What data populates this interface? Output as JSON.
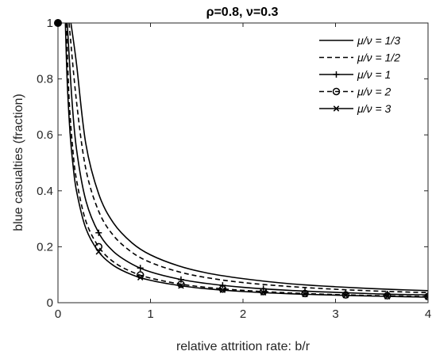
{
  "chart_data": {
    "type": "line",
    "title": "ρ=0.8, ν=0.3",
    "xlabel": "relative attrition rate: b/r",
    "ylabel": "blue casualties (fraction)",
    "xlim": [
      0,
      4
    ],
    "ylim": [
      0,
      1
    ],
    "x_ticks": [
      "0",
      "1",
      "2",
      "3",
      "4"
    ],
    "y_ticks": [
      "0",
      "0.2",
      "0.4",
      "0.6",
      "0.8",
      "1"
    ],
    "grid": false,
    "legend_position": "top-right",
    "start_point": {
      "x": 0,
      "y": 1
    },
    "series": [
      {
        "name": "μ/ν = 1/3",
        "line_style": "solid",
        "marker": "none",
        "x": [
          0.14,
          0.2,
          0.3,
          0.44,
          0.6,
          0.8,
          1.0,
          1.3,
          1.6,
          2.0,
          2.5,
          3.0,
          3.5,
          4.0
        ],
        "y": [
          1.0,
          0.855,
          0.57,
          0.389,
          0.285,
          0.214,
          0.171,
          0.132,
          0.107,
          0.086,
          0.068,
          0.057,
          0.049,
          0.043
        ]
      },
      {
        "name": "μ/ν = 1/2",
        "line_style": "dashed",
        "marker": "none",
        "x": [
          0.12,
          0.2,
          0.3,
          0.44,
          0.6,
          0.8,
          1.0,
          1.3,
          1.6,
          2.0,
          2.5,
          3.0,
          3.5,
          4.0
        ],
        "y": [
          1.0,
          0.72,
          0.48,
          0.327,
          0.24,
          0.18,
          0.144,
          0.111,
          0.09,
          0.072,
          0.058,
          0.048,
          0.041,
          0.036
        ]
      },
      {
        "name": "μ/ν = 1",
        "line_style": "solid",
        "marker": "plus",
        "x": [
          0.1,
          0.15,
          0.2,
          0.3,
          0.44,
          0.6,
          0.8,
          1.0,
          1.3,
          1.6,
          2.0,
          2.5,
          3.0,
          3.5,
          4.0
        ],
        "y": [
          1.0,
          0.73,
          0.55,
          0.367,
          0.25,
          0.183,
          0.138,
          0.11,
          0.085,
          0.069,
          0.055,
          0.044,
          0.037,
          0.031,
          0.028
        ],
        "marker_x": [
          0.44,
          0.89,
          1.33,
          1.78,
          2.22,
          2.67,
          3.11,
          3.56,
          4.0
        ],
        "marker_y": [
          0.25,
          0.124,
          0.083,
          0.062,
          0.05,
          0.041,
          0.035,
          0.031,
          0.028
        ]
      },
      {
        "name": "μ/ν = 2",
        "line_style": "dashed",
        "marker": "circle",
        "x": [
          0.09,
          0.12,
          0.16,
          0.2,
          0.3,
          0.44,
          0.6,
          0.8,
          1.0,
          1.3,
          1.6,
          2.0,
          2.5,
          3.0,
          3.5,
          4.0
        ],
        "y": [
          1.0,
          0.73,
          0.55,
          0.44,
          0.293,
          0.2,
          0.146,
          0.11,
          0.088,
          0.068,
          0.055,
          0.044,
          0.035,
          0.029,
          0.025,
          0.022
        ],
        "marker_x": [
          0.44,
          0.89,
          1.33,
          1.78,
          2.22,
          2.67,
          3.11,
          3.56,
          4.0
        ],
        "marker_y": [
          0.2,
          0.099,
          0.066,
          0.049,
          0.04,
          0.033,
          0.028,
          0.025,
          0.022
        ]
      },
      {
        "name": "μ/ν = 3",
        "line_style": "solid",
        "marker": "cross",
        "x": [
          0.08,
          0.1,
          0.13,
          0.16,
          0.2,
          0.3,
          0.44,
          0.6,
          0.8,
          1.0,
          1.3,
          1.6,
          2.0,
          2.5,
          3.0,
          3.5,
          4.0
        ],
        "y": [
          1.0,
          0.79,
          0.61,
          0.5,
          0.4,
          0.267,
          0.182,
          0.133,
          0.1,
          0.08,
          0.062,
          0.05,
          0.04,
          0.032,
          0.027,
          0.023,
          0.02
        ],
        "marker_x": [
          0.44,
          0.89,
          1.33,
          1.78,
          2.22,
          2.67,
          3.11,
          3.56,
          4.0
        ],
        "marker_y": [
          0.182,
          0.09,
          0.06,
          0.045,
          0.036,
          0.03,
          0.026,
          0.022,
          0.02
        ]
      }
    ]
  }
}
